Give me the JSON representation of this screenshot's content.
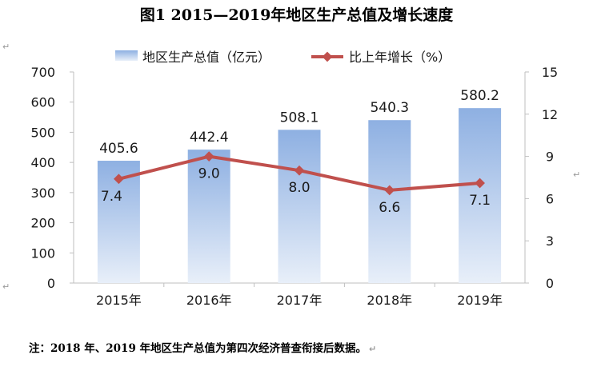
{
  "chart_data": {
    "type": "bar",
    "title": "图1  2015—2019年地区生产总值及增长速度",
    "categories": [
      "2015年",
      "2016年",
      "2017年",
      "2018年",
      "2019年"
    ],
    "series": [
      {
        "name": "地区生产总值（亿元）",
        "kind": "bar",
        "axis": "left",
        "values": [
          405.6,
          442.4,
          508.1,
          540.3,
          580.2
        ],
        "labels": [
          "405.6",
          "442.4",
          "508.1",
          "540.3",
          "580.2"
        ]
      },
      {
        "name": "比上年增长（%）",
        "kind": "line",
        "axis": "right",
        "values": [
          7.4,
          9.0,
          8.0,
          6.6,
          7.1
        ],
        "labels": [
          "7.4",
          "9.0",
          "8.0",
          "6.6",
          "7.1"
        ]
      }
    ],
    "ylim": [
      0,
      700
    ],
    "yticks": [
      "0",
      "100",
      "200",
      "300",
      "400",
      "500",
      "600",
      "700"
    ],
    "y2lim": [
      0,
      15
    ],
    "y2ticks": [
      "0",
      "3",
      "6",
      "9",
      "12",
      "15"
    ],
    "legend_position": "top",
    "grid": false,
    "colors": {
      "bar_top": "#8EB0E2",
      "bar_bottom": "#E8EFF9",
      "line": "#C0504D",
      "marker": "#C0504D"
    }
  },
  "note": "注：2018 年、2019 年地区生产总值为第四次经济普查衔接后数据。"
}
